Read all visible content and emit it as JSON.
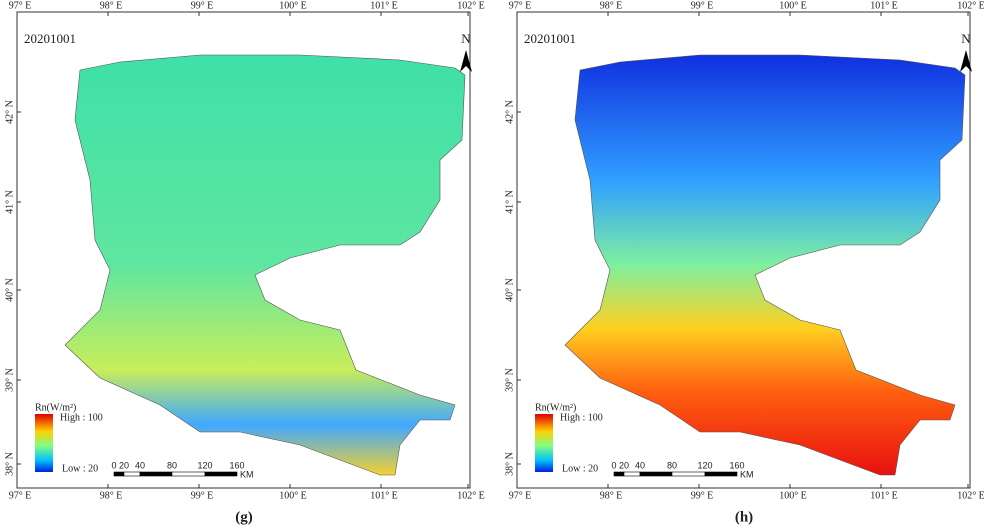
{
  "panels": [
    {
      "date": "20201001",
      "caption": "(g)"
    },
    {
      "date": "20201001",
      "caption": "(h)"
    }
  ],
  "north": "N",
  "lon_labels": [
    "97° E",
    "98° E",
    "99° E",
    "100° E",
    "101° E",
    "102° E"
  ],
  "lat_labels": [
    "42° N",
    "41° N",
    "40° N",
    "39° N",
    "38° N"
  ],
  "legend": {
    "title": "Rn(W/m²)",
    "high": "High : 100",
    "low": "Low : 20"
  },
  "scale": {
    "ticks": [
      0,
      20,
      40,
      80,
      120,
      160
    ],
    "unit": "KM"
  }
}
